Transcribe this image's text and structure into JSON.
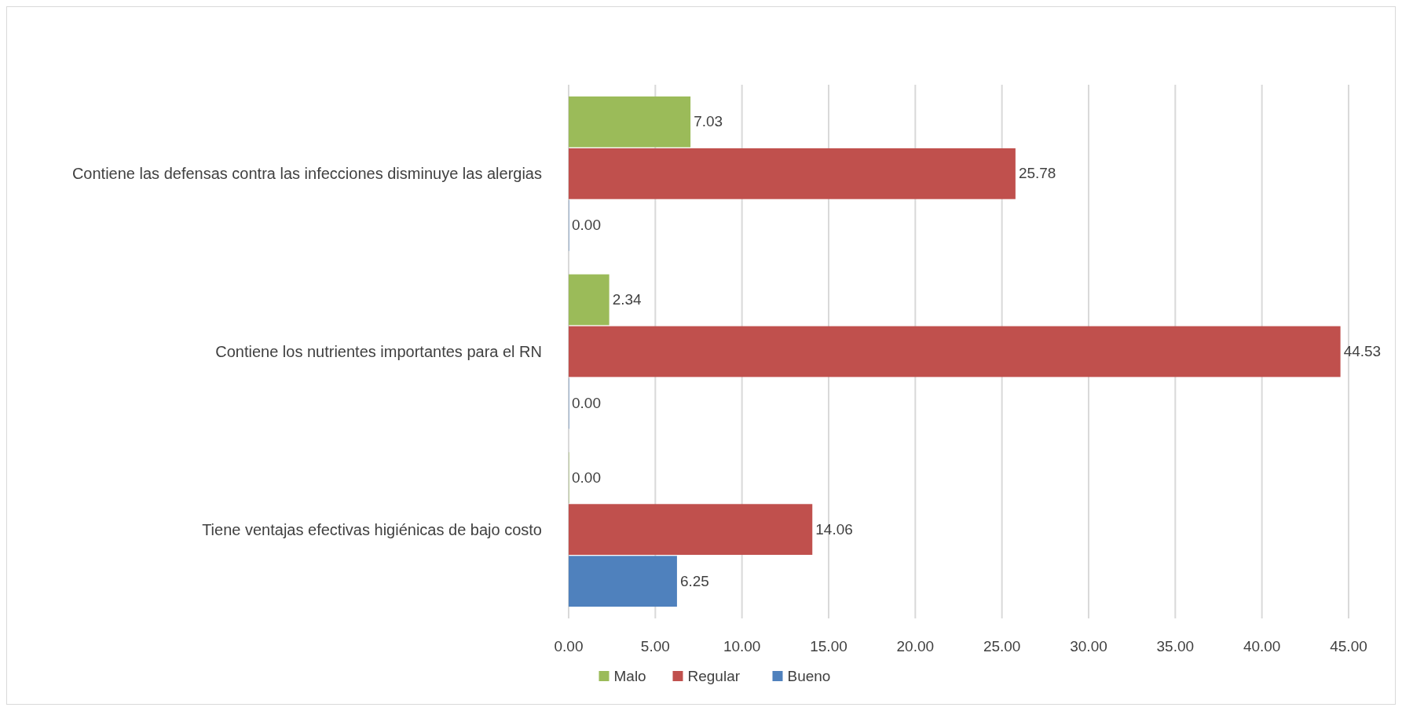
{
  "chart_data": {
    "type": "bar",
    "orientation": "horizontal",
    "categories": [
      "Contiene las defensas contra las infecciones disminuye las alergias",
      "Contiene los nutrientes importantes para el RN",
      "Tiene ventajas efectivas higiénicas de bajo costo"
    ],
    "series": [
      {
        "name": "Malo",
        "color": "#9bbb59",
        "values": [
          7.03,
          2.34,
          0
        ],
        "value_labels": [
          "7.03",
          "2.34",
          "0.00"
        ]
      },
      {
        "name": "Regular",
        "color": "#c0504d",
        "values": [
          25.78,
          44.53,
          14.06
        ],
        "value_labels": [
          "25.78",
          "44.53",
          "14.06"
        ]
      },
      {
        "name": "Bueno",
        "color": "#4f81bd",
        "values": [
          0,
          0,
          6.25
        ],
        "value_labels": [
          "0.00",
          "0.00",
          "6.25"
        ]
      }
    ],
    "xlim": [
      0,
      45
    ],
    "xticks": [
      {
        "value": 0,
        "label": "0.00"
      },
      {
        "value": 5,
        "label": "5.00"
      },
      {
        "value": 10,
        "label": "10.00"
      },
      {
        "value": 15,
        "label": "15.00"
      },
      {
        "value": 20,
        "label": "20.00"
      },
      {
        "value": 25,
        "label": "25.00"
      },
      {
        "value": 30,
        "label": "30.00"
      },
      {
        "value": 35,
        "label": "35.00"
      },
      {
        "value": 40,
        "label": "40.00"
      },
      {
        "value": 45,
        "label": "45.00"
      }
    ],
    "grid": "x",
    "legend": "bottom"
  }
}
